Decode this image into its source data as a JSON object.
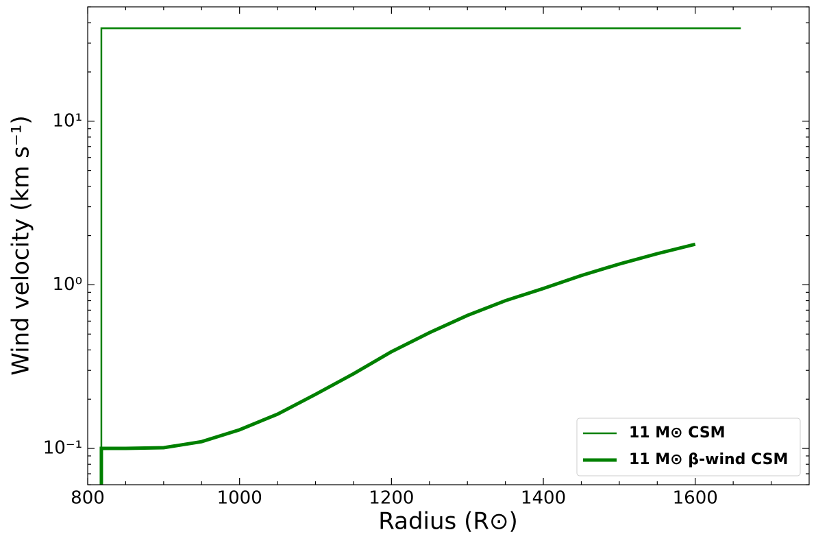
{
  "chart_data": {
    "type": "line",
    "xlabel": "Radius (R⊙)",
    "ylabel": "Wind velocity (km s⁻¹)",
    "xlim": [
      800,
      1750
    ],
    "ylim": [
      0.06,
      50
    ],
    "log_y": true,
    "xticks": [
      800,
      1000,
      1200,
      1400,
      1600
    ],
    "yticks": [
      {
        "value": 0.1,
        "label": "10⁻¹"
      },
      {
        "value": 1,
        "label": "10⁰"
      },
      {
        "value": 10,
        "label": "10¹"
      }
    ],
    "xminorticks": [
      850,
      900,
      950,
      1050,
      1100,
      1150,
      1250,
      1300,
      1350,
      1450,
      1500,
      1550,
      1650,
      1700
    ],
    "yminorticks": [
      0.06,
      0.07,
      0.08,
      0.09,
      0.2,
      0.3,
      0.4,
      0.5,
      0.6,
      0.7,
      0.8,
      0.9,
      2,
      3,
      4,
      5,
      6,
      7,
      8,
      9,
      20,
      30,
      40,
      50
    ],
    "legend": "lower right",
    "series": [
      {
        "name": "11 M⊙ CSM",
        "color": "#008000",
        "linewidth": 2.5,
        "x": [
          818,
          818,
          1660
        ],
        "values": [
          0.06,
          37,
          37
        ]
      },
      {
        "name": "11 M⊙ β-wind CSM",
        "color": "#008000",
        "linewidth": 5,
        "x": [
          818,
          818,
          850,
          900,
          950,
          1000,
          1050,
          1100,
          1150,
          1200,
          1250,
          1300,
          1350,
          1400,
          1450,
          1500,
          1550,
          1600
        ],
        "values": [
          0.06,
          0.1,
          0.1,
          0.101,
          0.11,
          0.13,
          0.162,
          0.214,
          0.286,
          0.39,
          0.51,
          0.65,
          0.8,
          0.95,
          1.14,
          1.34,
          1.55,
          1.77
        ]
      }
    ]
  }
}
